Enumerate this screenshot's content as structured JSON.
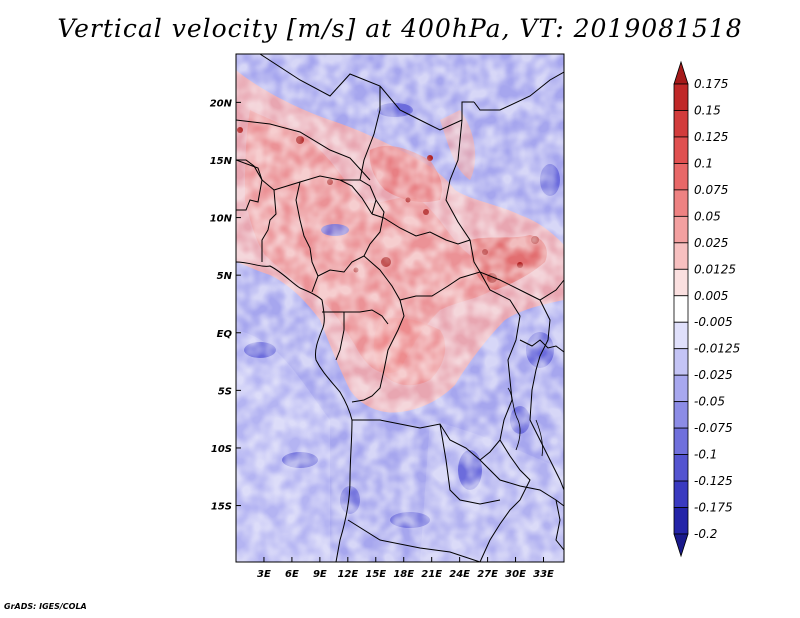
{
  "title": "Vertical velocity [m/s] at 400hPa, VT: 2019081518",
  "credit": "GrADS: IGES/COLA",
  "map": {
    "lon_range": [
      0,
      35.2
    ],
    "lat_range": [
      -19.9,
      24.2
    ],
    "lon_ticks": [
      "3E",
      "6E",
      "9E",
      "12E",
      "15E",
      "18E",
      "21E",
      "24E",
      "27E",
      "30E",
      "33E"
    ],
    "lat_ticks": [
      "20N",
      "15N",
      "10N",
      "5N",
      "EQ",
      "5S",
      "10S",
      "15S"
    ]
  },
  "colorbar": {
    "levels": [
      "0.175",
      "0.15",
      "0.125",
      "0.1",
      "0.075",
      "0.05",
      "0.025",
      "0.0125",
      "0.005",
      "-0.005",
      "-0.0125",
      "-0.025",
      "-0.05",
      "-0.075",
      "-0.1",
      "-0.125",
      "-0.175",
      "-0.2"
    ],
    "colors": [
      "#a51a1a",
      "#c02828",
      "#d23c3c",
      "#e05050",
      "#e86868",
      "#ee8282",
      "#f3a0a0",
      "#f7c0c0",
      "#fbe0e0",
      "#ffffff",
      "#e0e0fb",
      "#c4c4f5",
      "#a8a8ef",
      "#8c8ce6",
      "#7070dc",
      "#5454d0",
      "#3a3ac0",
      "#2424a8",
      "#1a1a8c"
    ]
  }
}
